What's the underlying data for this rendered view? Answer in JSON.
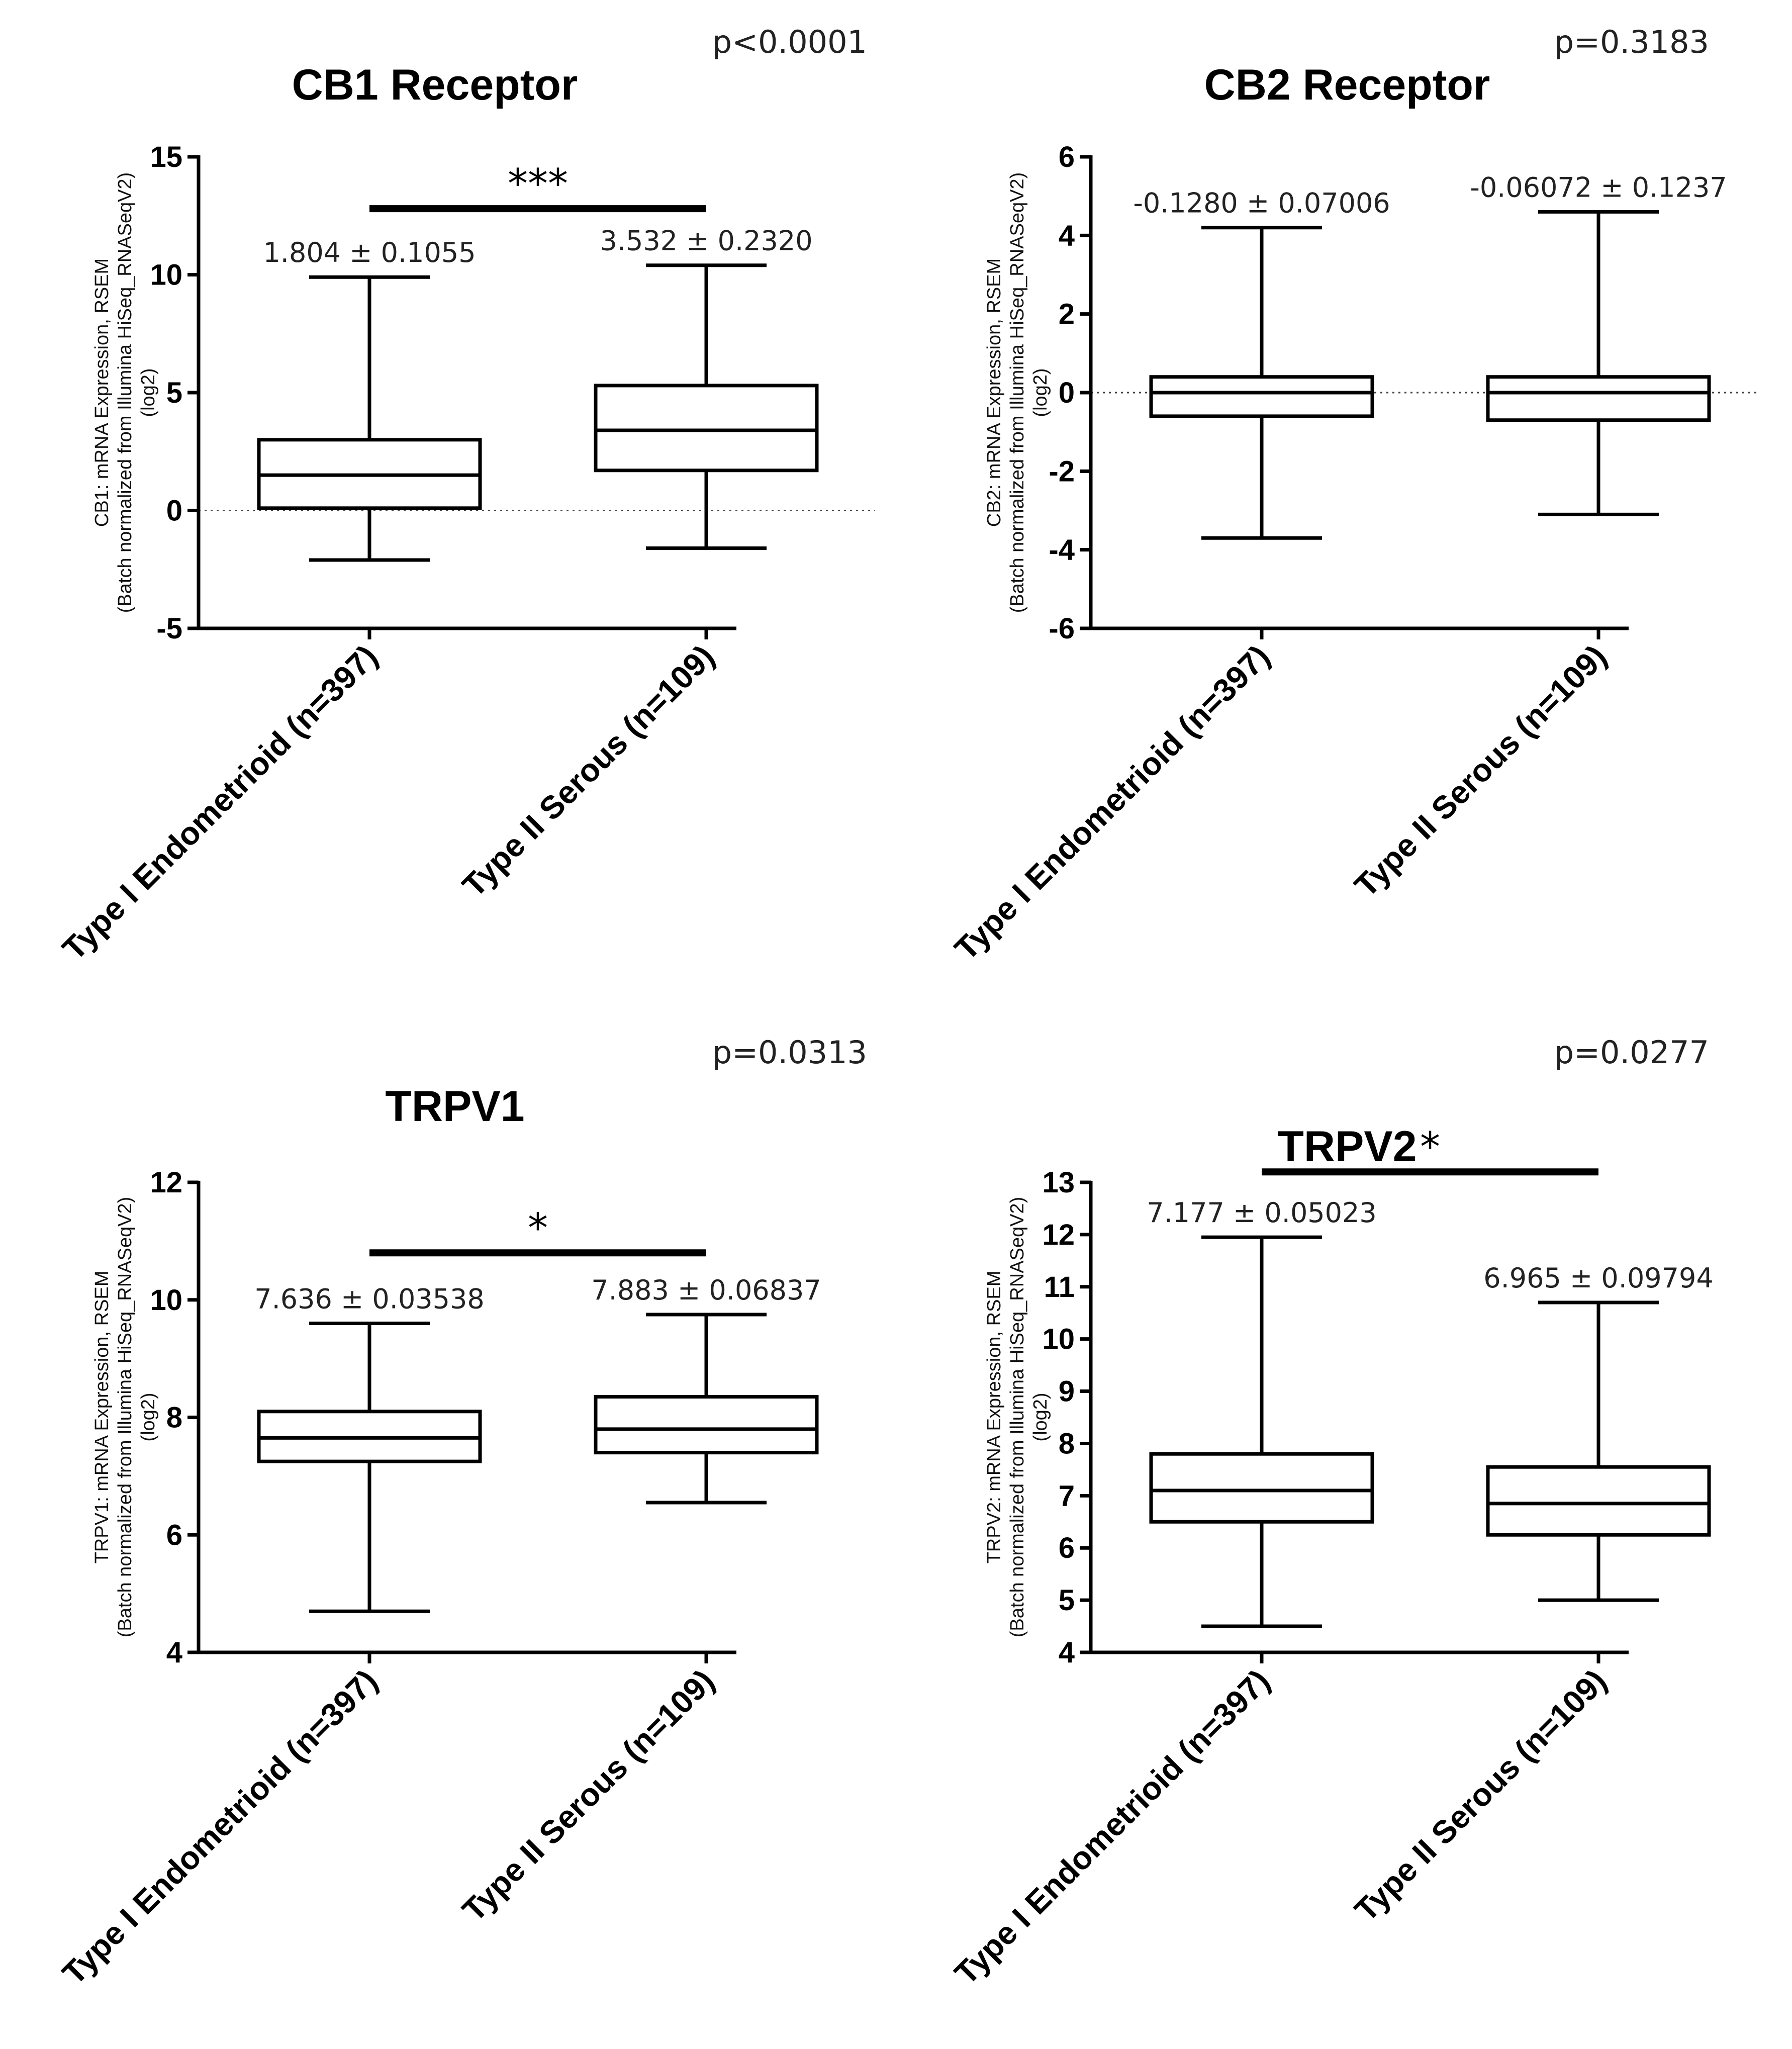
{
  "chart_data": [
    {
      "type": "box",
      "title": "CB1 Receptor",
      "p_value": "p<0.0001",
      "ylabel": [
        "CB1: mRNA Expression, RSEM",
        "(Batch normalized from Illumina HiSeq_RNASeqV2)",
        "(log2)"
      ],
      "ylim": [
        -5,
        15
      ],
      "yticks": [
        -5,
        0,
        5,
        10,
        15
      ],
      "zero_line": true,
      "categories": [
        "Type I Endometrioid (n=397)",
        "Type II Serous (n=109)"
      ],
      "groups": [
        {
          "min": -2.1,
          "q1": 0.1,
          "median": 1.5,
          "q3": 3.0,
          "max": 9.9,
          "mean_label": "1.804 ± 0.1055"
        },
        {
          "min": -1.6,
          "q1": 1.7,
          "median": 3.4,
          "q3": 5.3,
          "max": 10.4,
          "mean_label": "3.532 ± 0.2320"
        }
      ],
      "significance": {
        "label": "***",
        "y": 12.8
      }
    },
    {
      "type": "box",
      "title": "CB2  Receptor",
      "p_value": "p=0.3183",
      "ylabel": [
        "CB2: mRNA Expression, RSEM",
        "(Batch normalized from Illumina HiSeq_RNASeqV2)",
        "(log2)"
      ],
      "ylim": [
        -6,
        6
      ],
      "yticks": [
        -6,
        -4,
        -2,
        0,
        2,
        4,
        6
      ],
      "zero_line": true,
      "categories": [
        "Type I Endometrioid (n=397)",
        "Type II Serous (n=109)"
      ],
      "groups": [
        {
          "min": -3.7,
          "q1": -0.6,
          "median": 0.0,
          "q3": 0.4,
          "max": 4.2,
          "mean_label": "-0.1280 ± 0.07006"
        },
        {
          "min": -3.1,
          "q1": -0.7,
          "median": 0.0,
          "q3": 0.4,
          "max": 4.6,
          "mean_label": "-0.06072 ± 0.1237"
        }
      ],
      "significance": null
    },
    {
      "type": "box",
      "title": "TRPV1",
      "p_value": "p=0.0313",
      "ylabel": [
        "TRPV1: mRNA Expression, RSEM",
        "(Batch normalized from Illumina HiSeq_RNASeqV2)",
        "(log2)"
      ],
      "ylim": [
        4,
        12
      ],
      "yticks": [
        4,
        6,
        8,
        10,
        12
      ],
      "zero_line": false,
      "categories": [
        "Type I Endometrioid (n=397)",
        "Type II Serous (n=109)"
      ],
      "groups": [
        {
          "min": 4.7,
          "q1": 7.25,
          "median": 7.65,
          "q3": 8.1,
          "max": 9.6,
          "mean_label": "7.636 ± 0.03538"
        },
        {
          "min": 6.55,
          "q1": 7.4,
          "median": 7.8,
          "q3": 8.35,
          "max": 9.75,
          "mean_label": "7.883 ± 0.06837"
        }
      ],
      "significance": {
        "label": "*",
        "y": 10.8
      }
    },
    {
      "type": "box",
      "title": "TRPV2",
      "p_value": "p=0.0277",
      "ylabel": [
        "TRPV2: mRNA Expression, RSEM",
        "(Batch normalized from Illumina HiSeq_RNASeqV2)",
        "(log2)"
      ],
      "ylim": [
        4,
        13
      ],
      "yticks": [
        4,
        5,
        6,
        7,
        8,
        9,
        10,
        11,
        12,
        13
      ],
      "zero_line": false,
      "categories": [
        "Type I Endometrioid (n=397)",
        "Type II Serous (n=109)"
      ],
      "groups": [
        {
          "min": 4.5,
          "q1": 6.5,
          "median": 7.1,
          "q3": 7.8,
          "max": 11.95,
          "mean_label": "7.177 ± 0.05023"
        },
        {
          "min": 5.0,
          "q1": 6.25,
          "median": 6.85,
          "q3": 7.55,
          "max": 10.7,
          "mean_label": "6.965 ± 0.09794"
        }
      ],
      "significance": {
        "label": "*",
        "y": 13.2
      }
    }
  ]
}
